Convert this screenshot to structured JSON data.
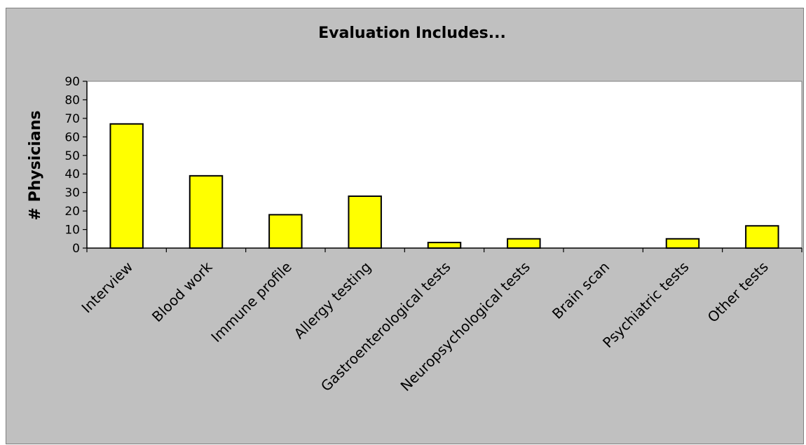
{
  "chart_data": {
    "type": "bar",
    "title": "Evaluation Includes...",
    "xlabel": "",
    "ylabel": "# Physicians",
    "categories": [
      "Interview",
      "Blood work",
      "Immune profile",
      "Allergy testing",
      "Gastroenterological tests",
      "Neuropsychological tests",
      "Brain scan",
      "Psychiatric tests",
      "Other tests"
    ],
    "values": [
      67,
      39,
      18,
      28,
      3,
      5,
      0,
      5,
      12
    ],
    "ylim": [
      0,
      90
    ],
    "yticks": [
      "0",
      "10",
      "20",
      "30",
      "40",
      "50",
      "60",
      "70",
      "80",
      "90"
    ],
    "grid": false,
    "legend": "none",
    "colors": {
      "bar_fill": "#ffff00",
      "bar_stroke": "#000000",
      "plot_area": "#ffffff",
      "chart_area": "#c0c0c0"
    }
  }
}
